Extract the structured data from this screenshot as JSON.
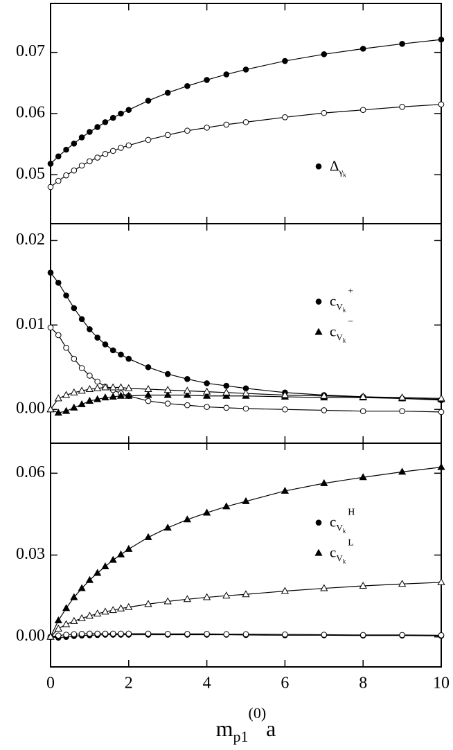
{
  "chart_data": [
    {
      "type": "line",
      "x": [
        0,
        0.2,
        0.4,
        0.6,
        0.8,
        1.0,
        1.2,
        1.4,
        1.6,
        1.8,
        2.0,
        2.5,
        3,
        3.5,
        4,
        4.5,
        5,
        6,
        7,
        8,
        9,
        10
      ],
      "xlim": [
        0,
        10
      ],
      "xticks": [
        0,
        2,
        4,
        6,
        8,
        10
      ],
      "xtick_labels": false,
      "ylim": [
        0.042,
        0.078
      ],
      "yticks": [
        0.05,
        0.06,
        0.07
      ],
      "series": [
        {
          "name": "Δ",
          "name_sub": "γ",
          "name_subsub": "k",
          "color": "#000000",
          "marker": "circle",
          "filled": true,
          "values": [
            0.0518,
            0.053,
            0.0541,
            0.0551,
            0.0561,
            0.057,
            0.0578,
            0.0586,
            0.0593,
            0.06,
            0.0606,
            0.0621,
            0.0634,
            0.0645,
            0.0655,
            0.0664,
            0.0672,
            0.0686,
            0.0697,
            0.0706,
            0.0714,
            0.0721
          ]
        },
        {
          "color": "#000000",
          "marker": "circle",
          "filled": false,
          "values": [
            0.048,
            0.049,
            0.0499,
            0.0507,
            0.0515,
            0.0522,
            0.0528,
            0.0534,
            0.0539,
            0.0544,
            0.0548,
            0.0557,
            0.0565,
            0.0572,
            0.0577,
            0.0582,
            0.0586,
            0.0594,
            0.0601,
            0.0606,
            0.0611,
            0.0615
          ]
        }
      ]
    },
    {
      "type": "line",
      "x": [
        0,
        0.2,
        0.4,
        0.6,
        0.8,
        1.0,
        1.2,
        1.4,
        1.6,
        1.8,
        2.0,
        2.5,
        3,
        3.5,
        4,
        4.5,
        5,
        6,
        7,
        8,
        9,
        10
      ],
      "xlim": [
        0,
        10
      ],
      "xticks": [
        0,
        2,
        4,
        6,
        8,
        10
      ],
      "xtick_labels": false,
      "ylim": [
        -0.004,
        0.022
      ],
      "yticks": [
        {
          "value": 0,
          "label": "0.00"
        },
        0.01,
        0.02
      ],
      "series": [
        {
          "name": "c",
          "name_sub": "V",
          "name_subsub": "k",
          "name_sup": "+",
          "color": "#000000",
          "marker": "circle",
          "filled": true,
          "values": [
            0.0162,
            0.015,
            0.0135,
            0.012,
            0.0107,
            0.0095,
            0.0085,
            0.0077,
            0.007,
            0.0065,
            0.006,
            0.005,
            0.0042,
            0.0036,
            0.0031,
            0.0028,
            0.0025,
            0.002,
            0.0017,
            0.0015,
            0.0013,
            0.0011
          ]
        },
        {
          "color": "#000000",
          "marker": "circle",
          "filled": false,
          "values": [
            0.0097,
            0.0088,
            0.0073,
            0.006,
            0.0049,
            0.004,
            0.0033,
            0.0027,
            0.0023,
            0.0019,
            0.0016,
            0.001,
            0.0007,
            0.0005,
            0.0003,
            0.0002,
            0.0001,
            0.0,
            -0.0001,
            -0.0002,
            -0.0002,
            -0.0003
          ]
        },
        {
          "name": "c",
          "name_sub": "V",
          "name_subsub": "k",
          "name_sup": "−",
          "color": "#000000",
          "marker": "triangle",
          "filled": true,
          "values": [
            0.0,
            -0.0004,
            -0.0002,
            0.0002,
            0.0006,
            0.001,
            0.0012,
            0.0014,
            0.0015,
            0.0016,
            0.0016,
            0.0017,
            0.0017,
            0.0017,
            0.0016,
            0.0016,
            0.0016,
            0.0015,
            0.0014,
            0.0014,
            0.0013,
            0.0012
          ]
        },
        {
          "color": "#000000",
          "marker": "triangle",
          "filled": false,
          "values": [
            0.0,
            0.0013,
            0.0017,
            0.002,
            0.0022,
            0.0024,
            0.0025,
            0.0026,
            0.0026,
            0.0026,
            0.0025,
            0.0024,
            0.0023,
            0.0022,
            0.0021,
            0.002,
            0.0019,
            0.0017,
            0.0016,
            0.0015,
            0.0014,
            0.0013
          ]
        }
      ]
    },
    {
      "type": "line",
      "x": [
        0,
        0.2,
        0.4,
        0.6,
        0.8,
        1.0,
        1.2,
        1.4,
        1.6,
        1.8,
        2.0,
        2.5,
        3,
        3.5,
        4,
        4.5,
        5,
        6,
        7,
        8,
        9,
        10
      ],
      "xlim": [
        0,
        10
      ],
      "xticks": [
        0,
        2,
        4,
        6,
        8,
        10
      ],
      "xtick_labels": true,
      "xlabel": "m",
      "xlabel_sub": "p1",
      "xlabel_sup": "(0)",
      "xlabel_tail": "a",
      "ylim": [
        -0.011,
        0.071
      ],
      "yticks": [
        {
          "value": 0,
          "label": "0.00"
        },
        0.03,
        0.06
      ],
      "series": [
        {
          "name": "c",
          "name_sub": "V",
          "name_subsub": "k",
          "name_sup": "H",
          "color": "#000000",
          "marker": "circle",
          "filled": true,
          "values": [
            0.0,
            -0.0003,
            0.0,
            0.0003,
            0.0005,
            0.0006,
            0.0007,
            0.0008,
            0.0008,
            0.0008,
            0.0008,
            0.0008,
            0.0008,
            0.0008,
            0.0008,
            0.0008,
            0.0007,
            0.0006,
            0.0006,
            0.0005,
            0.0005,
            0.0004
          ]
        },
        {
          "color": "#000000",
          "marker": "circle",
          "filled": false,
          "values": [
            0.0,
            0.0005,
            0.0008,
            0.001,
            0.0011,
            0.0012,
            0.0012,
            0.0012,
            0.0012,
            0.0012,
            0.0012,
            0.0012,
            0.0011,
            0.0011,
            0.0011,
            0.001,
            0.001,
            0.0009,
            0.0008,
            0.0007,
            0.0007,
            0.0006
          ]
        },
        {
          "name": "c",
          "name_sub": "V",
          "name_subsub": "k",
          "name_sup": "L",
          "color": "#000000",
          "marker": "triangle",
          "filled": true,
          "values": [
            0.0,
            0.006,
            0.0105,
            0.0145,
            0.0178,
            0.0208,
            0.0234,
            0.0258,
            0.0282,
            0.0302,
            0.0322,
            0.0365,
            0.04,
            0.043,
            0.0455,
            0.0478,
            0.0497,
            0.0535,
            0.0563,
            0.0585,
            0.0605,
            0.0622
          ]
        },
        {
          "color": "#000000",
          "marker": "triangle",
          "filled": false,
          "values": [
            0.0,
            0.003,
            0.0046,
            0.0058,
            0.0068,
            0.0077,
            0.0085,
            0.0092,
            0.0098,
            0.0104,
            0.0109,
            0.012,
            0.013,
            0.0138,
            0.0145,
            0.0151,
            0.0156,
            0.0168,
            0.0178,
            0.0187,
            0.0194,
            0.02
          ]
        }
      ]
    }
  ]
}
